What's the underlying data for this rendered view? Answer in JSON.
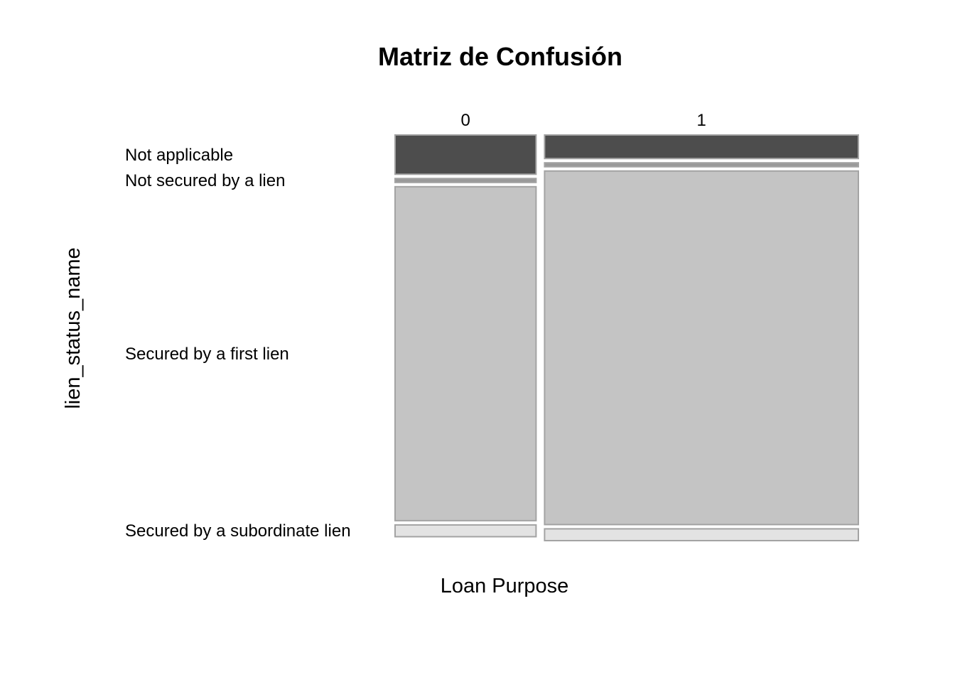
{
  "chart_data": {
    "type": "mosaic",
    "title": "Matriz de Confusión",
    "xlabel": "Loan Purpose",
    "ylabel": "lien_status_name",
    "x_categories": [
      "0",
      "1"
    ],
    "y_categories": [
      "Not applicable",
      "Not secured by a lien",
      "Secured by a first lien",
      "Secured by a subordinate lien"
    ],
    "x_proportions": [
      0.31,
      0.69
    ],
    "cells": {
      "0": [
        0.1,
        0.01,
        0.85,
        0.03
      ],
      "1": [
        0.06,
        0.01,
        0.9,
        0.03
      ]
    },
    "colors": [
      "#4d4d4d",
      "#999999",
      "#c4c4c4",
      "#e3e3e3"
    ],
    "stroke_color": "#a3a3a3"
  }
}
